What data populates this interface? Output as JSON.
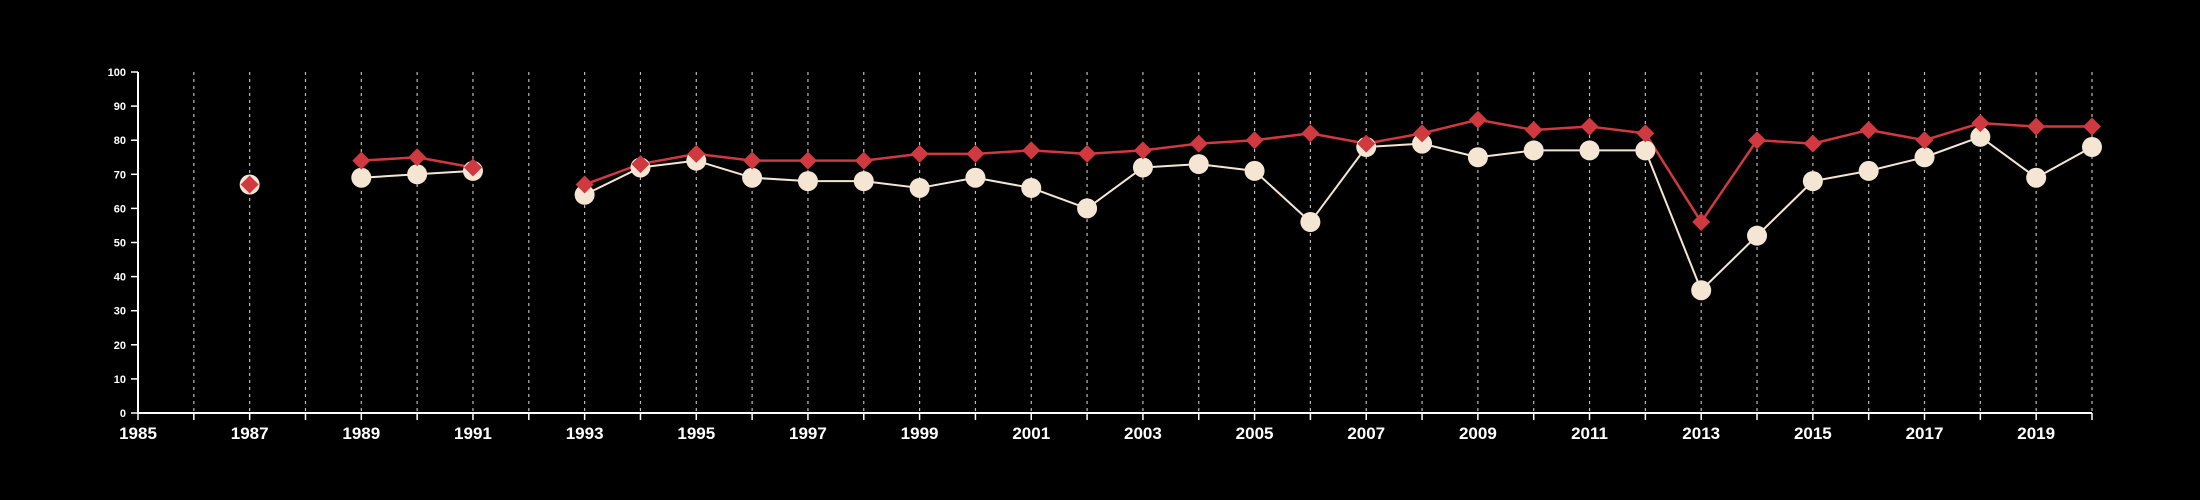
{
  "chart_data": {
    "type": "line",
    "title": "",
    "xlabel": "",
    "ylabel": "",
    "xlim": [
      1985,
      2020
    ],
    "ylim": [
      0,
      100
    ],
    "y_ticks": [
      "0",
      "10",
      "20",
      "30",
      "40",
      "50",
      "60",
      "70",
      "80",
      "90",
      "100"
    ],
    "x_tick_labels": [
      "1985",
      "1987",
      "1989",
      "1991",
      "1993",
      "1995",
      "1997",
      "1999",
      "2001",
      "2003",
      "2005",
      "2007",
      "2009",
      "2011",
      "2013",
      "2015",
      "2017",
      "2019"
    ],
    "grid": "vertical dashed lines at every year",
    "legend": "none",
    "x": [
      1987,
      1989,
      1990,
      1991,
      1993,
      1994,
      1995,
      1996,
      1997,
      1998,
      1999,
      2000,
      2001,
      2002,
      2003,
      2004,
      2005,
      2006,
      2007,
      2008,
      2009,
      2010,
      2011,
      2012,
      2013,
      2014,
      2015,
      2016,
      2017,
      2018,
      2019,
      2020
    ],
    "series": [
      {
        "color": "#d0393f",
        "marker": "diamond",
        "values": [
          67,
          74,
          75,
          72,
          67,
          73,
          76,
          74,
          74,
          74,
          76,
          76,
          77,
          76,
          77,
          79,
          80,
          82,
          79,
          82,
          86,
          83,
          84,
          82,
          56,
          80,
          79,
          83,
          80,
          85,
          84,
          84
        ]
      },
      {
        "color": "#f5e6d3",
        "marker": "circle",
        "values": [
          67,
          69,
          70,
          71,
          64,
          72,
          74,
          69,
          68,
          68,
          66,
          69,
          66,
          60,
          72,
          73,
          71,
          56,
          78,
          79,
          75,
          77,
          77,
          77,
          36,
          52,
          68,
          71,
          75,
          81,
          69,
          78
        ]
      }
    ]
  },
  "colors": {
    "background": "#000000",
    "axis": "#ffffff",
    "grid": "#bbbbbb"
  }
}
